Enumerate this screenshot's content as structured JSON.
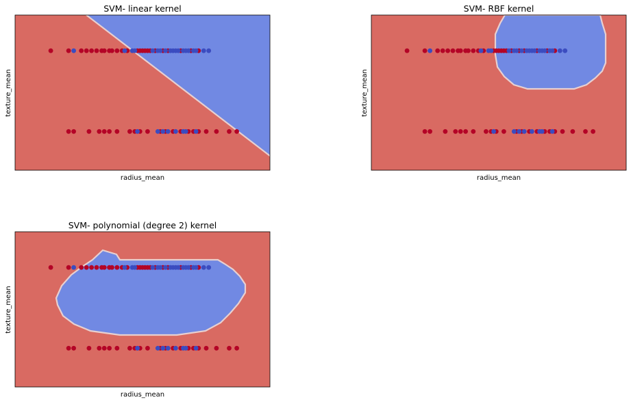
{
  "colors": {
    "class_a_region": "#d96a62",
    "class_b_region": "#7189e3",
    "class_a_point": "#b40426",
    "class_b_point": "#3b4cc0",
    "boundary": "#e8d0d0",
    "background": "#ffffff"
  },
  "chart_data": [
    {
      "type": "scatter",
      "title": "SVM- linear kernel",
      "xlabel": "radius_mean",
      "ylabel": "texture_mean",
      "ticks": "hidden",
      "grid": false,
      "xlim": [
        0,
        1
      ],
      "ylim": [
        0,
        1
      ],
      "decision_region": "class_b above a diagonal line running from top-left to bottom-right",
      "series": [
        {
          "class": "a",
          "rows": [
            {
              "y": 0.77,
              "x": [
                0.14,
                0.21,
                0.26,
                0.28,
                0.3,
                0.32,
                0.34,
                0.35,
                0.37,
                0.38,
                0.4,
                0.42,
                0.44,
                0.48,
                0.49,
                0.5,
                0.51,
                0.52,
                0.53,
                0.55,
                0.58,
                0.6,
                0.65,
                0.69,
                0.72
              ]
            },
            {
              "y": 0.25,
              "x": [
                0.21,
                0.23,
                0.29,
                0.33,
                0.35,
                0.37,
                0.4,
                0.45,
                0.47,
                0.49,
                0.52,
                0.57,
                0.59,
                0.62,
                0.65,
                0.68,
                0.7,
                0.72,
                0.75,
                0.79,
                0.84,
                0.87
              ]
            }
          ]
        },
        {
          "class": "b",
          "rows": [
            {
              "y": 0.77,
              "x": [
                0.23,
                0.43,
                0.46,
                0.47,
                0.54,
                0.56,
                0.57,
                0.59,
                0.61,
                0.62,
                0.63,
                0.64,
                0.66,
                0.67,
                0.68,
                0.7,
                0.71,
                0.74,
                0.76
              ]
            },
            {
              "y": 0.25,
              "x": [
                0.48,
                0.56,
                0.58,
                0.6,
                0.63,
                0.66,
                0.67,
                0.71
              ]
            }
          ]
        }
      ]
    },
    {
      "type": "scatter",
      "title": "SVM- RBF kernel",
      "xlabel": "radius_mean",
      "ylabel": "texture_mean",
      "ticks": "hidden",
      "grid": false,
      "xlim": [
        0,
        1
      ],
      "ylim": [
        0,
        1
      ],
      "decision_region": "class_b inside a rounded region in the upper-right",
      "series": [
        {
          "class": "a",
          "rows": [
            {
              "y": 0.77,
              "x": [
                0.14,
                0.21,
                0.26,
                0.28,
                0.3,
                0.32,
                0.34,
                0.35,
                0.37,
                0.38,
                0.4,
                0.42,
                0.44,
                0.48,
                0.49,
                0.5,
                0.51,
                0.52,
                0.53,
                0.55,
                0.58,
                0.6,
                0.65,
                0.69,
                0.72
              ]
            },
            {
              "y": 0.25,
              "x": [
                0.21,
                0.23,
                0.29,
                0.33,
                0.35,
                0.37,
                0.4,
                0.45,
                0.47,
                0.49,
                0.52,
                0.57,
                0.59,
                0.62,
                0.65,
                0.68,
                0.7,
                0.72,
                0.75,
                0.79,
                0.84,
                0.87
              ]
            }
          ]
        },
        {
          "class": "b",
          "rows": [
            {
              "y": 0.77,
              "x": [
                0.23,
                0.43,
                0.46,
                0.47,
                0.54,
                0.56,
                0.57,
                0.59,
                0.61,
                0.62,
                0.63,
                0.64,
                0.66,
                0.67,
                0.68,
                0.7,
                0.71,
                0.74,
                0.76
              ]
            },
            {
              "y": 0.25,
              "x": [
                0.48,
                0.56,
                0.58,
                0.6,
                0.63,
                0.66,
                0.67,
                0.71
              ]
            }
          ]
        }
      ]
    },
    {
      "type": "scatter",
      "title": "SVM- polynomial (degree 2) kernel",
      "xlabel": "radius_mean",
      "ylabel": "texture_mean",
      "ticks": "hidden",
      "grid": false,
      "xlim": [
        0,
        1
      ],
      "ylim": [
        0,
        1
      ],
      "decision_region": "class_b inside an elliptical region in the upper-center",
      "series": [
        {
          "class": "a",
          "rows": [
            {
              "y": 0.77,
              "x": [
                0.14,
                0.21,
                0.26,
                0.28,
                0.3,
                0.32,
                0.34,
                0.35,
                0.37,
                0.38,
                0.4,
                0.42,
                0.44,
                0.48,
                0.49,
                0.5,
                0.51,
                0.52,
                0.53,
                0.55,
                0.58,
                0.6,
                0.65,
                0.69,
                0.72
              ]
            },
            {
              "y": 0.25,
              "x": [
                0.21,
                0.23,
                0.29,
                0.33,
                0.35,
                0.37,
                0.4,
                0.45,
                0.47,
                0.49,
                0.52,
                0.57,
                0.59,
                0.62,
                0.65,
                0.68,
                0.7,
                0.72,
                0.75,
                0.79,
                0.84,
                0.87
              ]
            }
          ]
        },
        {
          "class": "b",
          "rows": [
            {
              "y": 0.77,
              "x": [
                0.23,
                0.43,
                0.46,
                0.47,
                0.54,
                0.56,
                0.57,
                0.59,
                0.61,
                0.62,
                0.63,
                0.64,
                0.66,
                0.67,
                0.68,
                0.7,
                0.71,
                0.74,
                0.76
              ]
            },
            {
              "y": 0.25,
              "x": [
                0.48,
                0.56,
                0.58,
                0.6,
                0.63,
                0.66,
                0.67,
                0.71
              ]
            }
          ]
        }
      ]
    }
  ]
}
